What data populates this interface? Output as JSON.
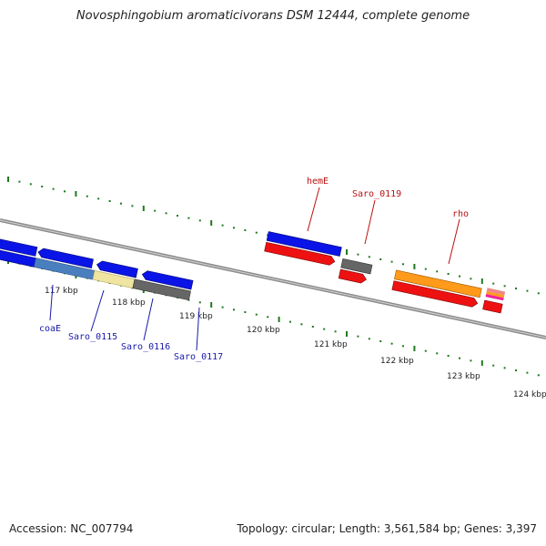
{
  "title": "Novosphingobium aromaticivorans DSM 12444, complete genome",
  "footer": {
    "accession": "Accession: NC_007794",
    "summary": "Topology: circular; Length: 3,561,584 bp; Genes: 3,397"
  },
  "scale_labels": [
    "117 kbp",
    "118 kbp",
    "119 kbp",
    "120 kbp",
    "121 kbp",
    "122 kbp",
    "123 kbp",
    "124 kbp"
  ],
  "colors": {
    "backbone": "#8c8c8c",
    "dots": "#1e7a1e",
    "blue": "#0a14e6",
    "red": "#ee1111",
    "gray": "#666666",
    "steel": "#4a7fbf",
    "khaki": "#efe4a0",
    "orange": "#ff9a1a",
    "magenta": "#ee2299",
    "label_blue": "#1a1aaa",
    "label_red": "#bb1111"
  },
  "gene_labels": {
    "coaE": "coaE",
    "saro_0115": "Saro_0115",
    "saro_0116": "Saro_0116",
    "saro_0117": "Saro_0117",
    "hemE": "hemE",
    "saro_0119": "Saro_0119",
    "rho": "rho"
  }
}
